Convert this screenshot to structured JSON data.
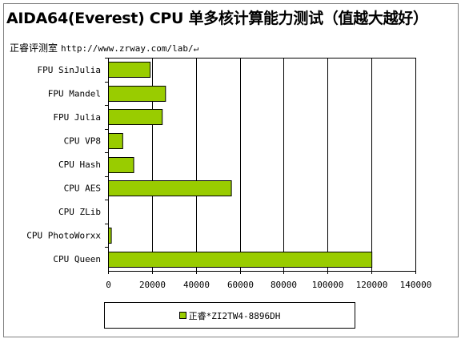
{
  "header": {
    "title": "AIDA64(Everest) CPU 单多核计算能力测试（值越大越好）",
    "source_label": "正睿评测室",
    "source_url": "http://www.zrway.com/lab/↵"
  },
  "colors": {
    "bar_fill": "#99cc00",
    "bar_stroke": "#000000",
    "plot_background": "#ffffff",
    "grid": "#000000"
  },
  "chart_data": {
    "type": "bar",
    "orientation": "horizontal",
    "title": "AIDA64(Everest) CPU 单多核计算能力测试（值越大越好）",
    "xlabel": "",
    "ylabel": "",
    "categories": [
      "FPU SinJulia",
      "FPU Mandel",
      "FPU Julia",
      "CPU VP8",
      "CPU Hash",
      "CPU AES",
      "CPU ZLib",
      "CPU PhotoWorxx",
      "CPU Queen"
    ],
    "series": [
      {
        "name": "正睿*ZI2TW4-8896DH",
        "values": [
          19000,
          26000,
          24500,
          6500,
          11500,
          56000,
          0,
          1300,
          120000
        ]
      }
    ],
    "xlim": [
      0,
      140000
    ],
    "xticks": [
      "0",
      "20000",
      "40000",
      "60000",
      "80000",
      "100000",
      "120000",
      "140000"
    ],
    "grid": "vertical major gridlines",
    "legend_position": "bottom"
  }
}
